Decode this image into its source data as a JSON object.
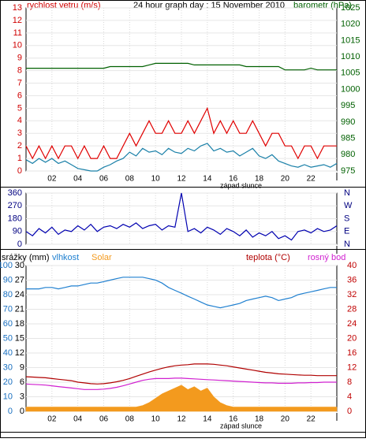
{
  "chart_data": [
    {
      "type": "line",
      "title": "24 hour graph day : 15 November 2010",
      "ylabel": "rychlost vetru (m/s)",
      "y2label": "barometr (hPa)",
      "ytick_color": "#d00000",
      "y2tick_color": "#006000",
      "xlim": [
        0,
        24
      ],
      "xticks": [
        {
          "value": 2,
          "label": "02"
        },
        {
          "value": 4,
          "label": "04"
        },
        {
          "value": 6,
          "label": "06"
        },
        {
          "value": 8,
          "label": "08"
        },
        {
          "value": 10,
          "label": "10"
        },
        {
          "value": 12,
          "label": "12"
        },
        {
          "value": 14,
          "label": "14"
        },
        {
          "value": 16,
          "label": "16"
        },
        {
          "value": 18,
          "label": "18"
        },
        {
          "value": 20,
          "label": "20"
        },
        {
          "value": 22,
          "label": "22"
        }
      ],
      "ylim": [
        0,
        13
      ],
      "yticks": [
        0,
        1,
        2,
        3,
        4,
        5,
        6,
        7,
        8,
        9,
        10,
        11,
        12,
        13
      ],
      "y2lim": [
        975,
        1025
      ],
      "y2ticks": [
        975,
        980,
        985,
        990,
        995,
        1000,
        1005,
        1010,
        1015,
        1020,
        1025
      ],
      "grid": true,
      "annotations": [
        {
          "text": "západ slunce",
          "x": 16.6
        }
      ],
      "x": [
        0,
        0.5,
        1,
        1.5,
        2,
        2.5,
        3,
        3.5,
        4,
        4.5,
        5,
        5.5,
        6,
        6.5,
        7,
        7.5,
        8,
        8.5,
        9,
        9.5,
        10,
        10.5,
        11,
        11.5,
        12,
        12.5,
        13,
        13.5,
        14,
        14.5,
        15,
        15.5,
        16,
        16.5,
        17,
        17.5,
        18,
        18.5,
        19,
        19.5,
        20,
        20.5,
        21,
        21.5,
        22,
        22.5,
        23,
        23.5,
        24
      ],
      "series": [
        {
          "color": "#e00000",
          "values": [
            2,
            1,
            2,
            1,
            2,
            1,
            2,
            2,
            1,
            2,
            1,
            1,
            2,
            1,
            1,
            2,
            3,
            2,
            3,
            4,
            3,
            3,
            4,
            3,
            3,
            4,
            3,
            4,
            5,
            3,
            4,
            3,
            4,
            3,
            3,
            4,
            3,
            2,
            3,
            3,
            2,
            2,
            1,
            2,
            2,
            1,
            2,
            2,
            2
          ]
        },
        {
          "color": "#1a80a8",
          "values": [
            0.9,
            0.6,
            1,
            0.7,
            1,
            0.6,
            0.8,
            0.5,
            0.2,
            0.1,
            0,
            0,
            0.3,
            0.5,
            0.8,
            1,
            1.5,
            1.2,
            1.8,
            1.5,
            1.6,
            1.3,
            1.8,
            1.5,
            1.4,
            1.8,
            1.6,
            2,
            2.2,
            1.6,
            1.8,
            1.5,
            1.6,
            1.2,
            1.5,
            1.8,
            1.2,
            1,
            1.3,
            0.8,
            0.6,
            0.4,
            0.3,
            0.5,
            0.3,
            0.4,
            0.5,
            0.3,
            0.6
          ]
        },
        {
          "color": "#006000",
          "axis": "y2",
          "values": [
            1006.5,
            1006.5,
            1006.5,
            1006.5,
            1006.5,
            1006.5,
            1006.5,
            1006.5,
            1006.5,
            1006.5,
            1006.5,
            1006.5,
            1006.5,
            1007,
            1007,
            1007,
            1007,
            1007,
            1007,
            1007.5,
            1008,
            1008,
            1008,
            1008,
            1008,
            1008,
            1007.5,
            1007.5,
            1007.5,
            1007.5,
            1007.5,
            1007.5,
            1007.5,
            1007.5,
            1007,
            1007,
            1007,
            1007,
            1007,
            1007,
            1006,
            1006,
            1006,
            1006,
            1006.5,
            1006,
            1006,
            1006,
            1006
          ]
        }
      ]
    },
    {
      "type": "line",
      "ytick_color": "#000080",
      "y2tick_color": "#000080",
      "xlim": [
        0,
        24
      ],
      "xticks": [
        2,
        4,
        6,
        8,
        10,
        12,
        14,
        16,
        18,
        20,
        22
      ],
      "ylim": [
        0,
        360
      ],
      "yticks": [
        0,
        90,
        180,
        270,
        360
      ],
      "y2lim": [
        0,
        360
      ],
      "y2ticks": [
        {
          "value": 0,
          "label": "N"
        },
        {
          "value": 90,
          "label": "E"
        },
        {
          "value": 180,
          "label": "S"
        },
        {
          "value": 270,
          "label": "W"
        },
        {
          "value": 360,
          "label": "N"
        }
      ],
      "grid": true,
      "x": [
        0,
        0.5,
        1,
        1.5,
        2,
        2.5,
        3,
        3.5,
        4,
        4.5,
        5,
        5.5,
        6,
        6.5,
        7,
        7.5,
        8,
        8.5,
        9,
        9.5,
        10,
        10.5,
        11,
        11.5,
        12,
        12.5,
        13,
        13.5,
        14,
        14.5,
        15,
        15.5,
        16,
        16.5,
        17,
        17.5,
        18,
        18.5,
        19,
        19.5,
        20,
        20.5,
        21,
        21.5,
        22,
        22.5,
        23,
        23.5,
        24
      ],
      "series": [
        {
          "color": "#0000b0",
          "values": [
            90,
            60,
            110,
            80,
            120,
            70,
            100,
            90,
            130,
            100,
            140,
            90,
            120,
            130,
            110,
            140,
            120,
            150,
            110,
            130,
            140,
            100,
            130,
            120,
            360,
            90,
            110,
            80,
            120,
            100,
            70,
            110,
            90,
            60,
            100,
            50,
            80,
            60,
            90,
            40,
            60,
            30,
            90,
            100,
            80,
            110,
            90,
            100,
            130
          ]
        }
      ]
    },
    {
      "type": "line",
      "ylabel": "srážky (mm)",
      "ytick_color": "#1a70c0",
      "y2tick_color": "#c00000",
      "y3tick_color": "#000000",
      "xlim": [
        0,
        24
      ],
      "xticks": [
        {
          "value": 2,
          "label": "02"
        },
        {
          "value": 4,
          "label": "04"
        },
        {
          "value": 6,
          "label": "06"
        },
        {
          "value": 8,
          "label": "08"
        },
        {
          "value": 10,
          "label": "10"
        },
        {
          "value": 12,
          "label": "12"
        },
        {
          "value": 14,
          "label": "14"
        },
        {
          "value": 16,
          "label": "16"
        },
        {
          "value": 18,
          "label": "18"
        },
        {
          "value": 20,
          "label": "20"
        },
        {
          "value": 22,
          "label": "22"
        }
      ],
      "ylim": [
        0,
        100
      ],
      "yticks": [
        0,
        10,
        20,
        30,
        40,
        50,
        60,
        70,
        80,
        90,
        100
      ],
      "y3lim": [
        0,
        30
      ],
      "y3ticks": [
        0,
        3,
        6,
        9,
        12,
        15,
        18,
        21,
        24,
        27,
        30
      ],
      "y2lim": [
        0,
        40
      ],
      "y2ticks": [
        0,
        4,
        8,
        12,
        16,
        20,
        24,
        28,
        32,
        36,
        40
      ],
      "grid": true,
      "annotations": [
        {
          "text": "západ slunce",
          "x": 16.6
        }
      ],
      "x": [
        0,
        0.5,
        1,
        1.5,
        2,
        2.5,
        3,
        3.5,
        4,
        4.5,
        5,
        5.5,
        6,
        6.5,
        7,
        7.5,
        8,
        8.5,
        9,
        9.5,
        10,
        10.5,
        11,
        11.5,
        12,
        12.5,
        13,
        13.5,
        14,
        14.5,
        15,
        15.5,
        16,
        16.5,
        17,
        17.5,
        18,
        18.5,
        19,
        19.5,
        20,
        20.5,
        21,
        21.5,
        22,
        22.5,
        23,
        23.5,
        24
      ],
      "series": [
        {
          "name": "vlhkost",
          "color": "#2080d0",
          "values": [
            84,
            84,
            84,
            85,
            85,
            84,
            85,
            86,
            86,
            87,
            88,
            88,
            89,
            90,
            91,
            92,
            92,
            92,
            92,
            91,
            90,
            88,
            85,
            83,
            81,
            79,
            77,
            75,
            73,
            72,
            71,
            72,
            73,
            74,
            76,
            77,
            78,
            79,
            78,
            76,
            77,
            78,
            80,
            81,
            82,
            83,
            84,
            85,
            85
          ]
        },
        {
          "name": "Solar",
          "color": "#f39a1e",
          "area": true,
          "values": [
            3,
            3,
            3,
            3,
            3,
            3,
            3,
            3,
            3,
            3,
            3,
            3,
            3,
            3,
            3,
            3,
            3,
            3,
            4,
            6,
            9,
            12,
            14,
            16,
            18,
            15,
            17,
            14,
            16,
            10,
            6,
            4,
            3,
            3,
            3,
            3,
            3,
            3,
            3,
            3,
            3,
            3,
            3,
            3,
            3,
            3,
            3,
            3,
            3
          ]
        },
        {
          "name": "teplota (°C)",
          "color": "#b00000",
          "axis": "y2",
          "values": [
            9.5,
            9.4,
            9.3,
            9.2,
            9.0,
            8.8,
            8.6,
            8.4,
            8.0,
            7.8,
            7.6,
            7.5,
            7.6,
            7.8,
            8.1,
            8.5,
            9.0,
            9.6,
            10.2,
            10.8,
            11.3,
            11.8,
            12.2,
            12.5,
            12.7,
            12.8,
            13.0,
            13.0,
            13.0,
            12.9,
            12.7,
            12.5,
            12.2,
            11.9,
            11.6,
            11.3,
            11.0,
            10.7,
            10.5,
            10.3,
            10.2,
            10.1,
            10.0,
            9.9,
            9.9,
            9.8,
            9.8,
            9.8,
            9.8
          ]
        },
        {
          "name": "rosný bod",
          "color": "#d020d0",
          "axis": "y2",
          "values": [
            7.5,
            7.4,
            7.3,
            7.2,
            7.0,
            6.8,
            6.6,
            6.4,
            6.2,
            6.0,
            6.0,
            6.0,
            6.1,
            6.3,
            6.6,
            7.0,
            7.5,
            8.0,
            8.5,
            8.8,
            9.0,
            9.0,
            9.0,
            9.1,
            9.1,
            9.0,
            8.9,
            8.8,
            8.7,
            8.6,
            8.5,
            8.4,
            8.3,
            8.2,
            8.1,
            8.0,
            7.9,
            7.8,
            7.8,
            7.7,
            7.7,
            7.7,
            7.8,
            7.8,
            7.9,
            7.9,
            8.0,
            8.0,
            8.0
          ]
        }
      ]
    }
  ]
}
